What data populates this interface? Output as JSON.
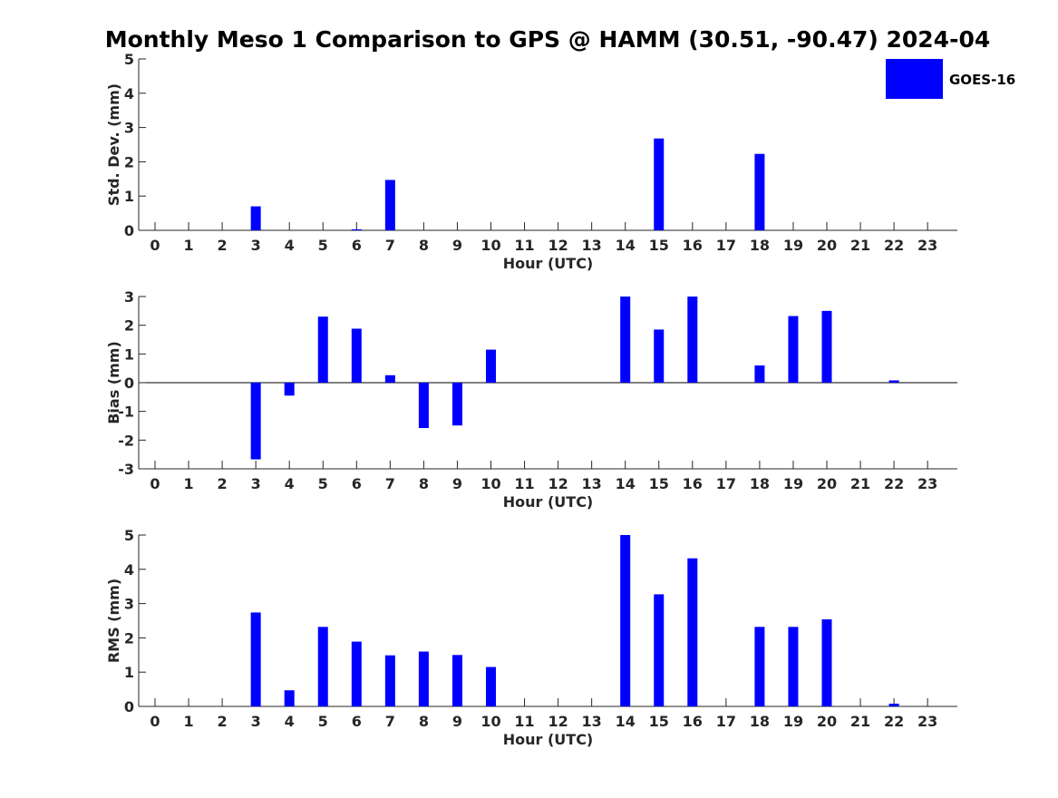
{
  "chart_data": [
    {
      "type": "bar",
      "title": "Monthly Meso 1 Comparison to GPS @ HAMM (30.51, -90.47) 2024-04",
      "xlabel": "Hour (UTC)",
      "ylabel": "Std. Dev. (mm)",
      "categories": [
        "0",
        "1",
        "2",
        "3",
        "4",
        "5",
        "6",
        "7",
        "8",
        "9",
        "10",
        "11",
        "12",
        "13",
        "14",
        "15",
        "16",
        "17",
        "18",
        "19",
        "20",
        "21",
        "22",
        "23"
      ],
      "series": [
        {
          "name": "GOES-16",
          "color": "#0000ff",
          "values": [
            0,
            0,
            0,
            0.7,
            0,
            0,
            0.03,
            1.47,
            0,
            0,
            0,
            0,
            0,
            0,
            0,
            2.68,
            0,
            0,
            2.23,
            0,
            0,
            0,
            0,
            0
          ]
        }
      ],
      "ylim": [
        0,
        5
      ],
      "yticks": [
        0,
        1,
        2,
        3,
        4,
        5
      ],
      "legend": "top-right",
      "grid": false
    },
    {
      "type": "bar",
      "xlabel": "Hour (UTC)",
      "ylabel": "Bias (mm)",
      "categories": [
        "0",
        "1",
        "2",
        "3",
        "4",
        "5",
        "6",
        "7",
        "8",
        "9",
        "10",
        "11",
        "12",
        "13",
        "14",
        "15",
        "16",
        "17",
        "18",
        "19",
        "20",
        "21",
        "22",
        "23"
      ],
      "series": [
        {
          "name": "GOES-16",
          "color": "#0000ff",
          "values": [
            0,
            0,
            0,
            -2.67,
            -0.45,
            2.3,
            1.88,
            0.26,
            -1.58,
            -1.49,
            1.15,
            0,
            0,
            0,
            3.0,
            1.85,
            3.0,
            0,
            0.6,
            2.32,
            2.5,
            0,
            0.08,
            0
          ]
        }
      ],
      "ylim": [
        -3,
        3
      ],
      "yticks": [
        -3,
        -2,
        -1,
        0,
        1,
        2,
        3
      ],
      "grid": false
    },
    {
      "type": "bar",
      "xlabel": "Hour (UTC)",
      "ylabel": "RMS (mm)",
      "categories": [
        "0",
        "1",
        "2",
        "3",
        "4",
        "5",
        "6",
        "7",
        "8",
        "9",
        "10",
        "11",
        "12",
        "13",
        "14",
        "15",
        "16",
        "17",
        "18",
        "19",
        "20",
        "21",
        "22",
        "23"
      ],
      "series": [
        {
          "name": "GOES-16",
          "color": "#0000ff",
          "values": [
            0,
            0,
            0,
            2.74,
            0.47,
            2.32,
            1.89,
            1.49,
            1.6,
            1.5,
            1.15,
            0,
            0,
            0,
            5.0,
            3.27,
            4.32,
            0,
            2.32,
            2.32,
            2.54,
            0,
            0.08,
            0
          ]
        }
      ],
      "ylim": [
        0,
        5
      ],
      "yticks": [
        0,
        1,
        2,
        3,
        4,
        5
      ],
      "grid": false
    }
  ],
  "legend": {
    "label": "GOES-16",
    "color": "#0000ff"
  }
}
